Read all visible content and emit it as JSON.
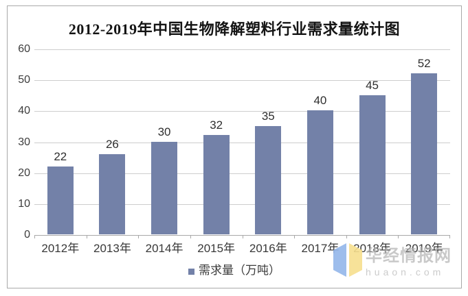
{
  "chart_data": {
    "type": "bar",
    "title": "2012-2019年中国生物降解塑料行业需求量统计图",
    "categories": [
      "2012年",
      "2013年",
      "2014年",
      "2015年",
      "2016年",
      "2017年",
      "2018年",
      "2019年"
    ],
    "values": [
      22,
      26,
      30,
      32,
      35,
      40,
      45,
      52
    ],
    "xlabel": "",
    "ylabel": "",
    "ylim": [
      0,
      60
    ],
    "yticks": [
      0,
      10,
      20,
      30,
      40,
      50,
      60
    ],
    "grid": true,
    "legend_label": "需求量（万吨）",
    "legend_position": "bottom",
    "bar_color": "#7381A8"
  },
  "watermark": {
    "name": "华经情报网",
    "domain": "huaon.com"
  },
  "colors": {
    "bar": "#7381A8",
    "gridline": "#CDCDCD",
    "axis_line": "#A8A8A8",
    "frame_border": "#A9A9A9",
    "title_text": "#141414",
    "label_text": "#3A3A3A",
    "watermark_text": "#B5B5B5",
    "logo_blue": "#93B6EA",
    "logo_yellow": "#F7DF8E"
  }
}
